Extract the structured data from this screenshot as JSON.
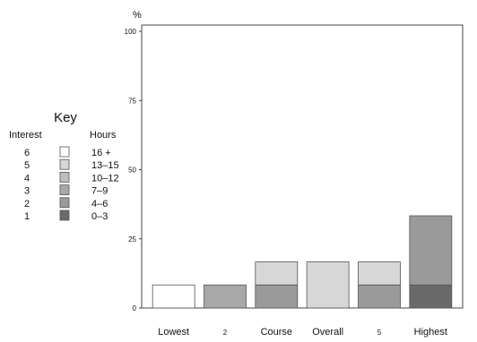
{
  "chart_data": {
    "type": "bar",
    "stacked": true,
    "ylabel": "%",
    "ylim": [
      0,
      105
    ],
    "yticks": [
      0,
      25,
      50,
      75,
      100
    ],
    "grid": false,
    "categories": [
      "Lowest",
      "2",
      "Course",
      "Overall",
      "5",
      "Highest"
    ],
    "category_sizes": [
      "normal",
      "small",
      "normal",
      "normal",
      "small",
      "normal"
    ],
    "series": [
      {
        "name": "0–3",
        "interest": "1",
        "color": "#6a6a6a",
        "values": [
          0,
          0,
          0,
          0,
          0,
          8.33
        ]
      },
      {
        "name": "4–6",
        "interest": "2",
        "color": "#9a9a9a",
        "values": [
          0,
          0,
          8.33,
          0,
          8.33,
          25
        ]
      },
      {
        "name": "7–9",
        "interest": "3",
        "color": "#a8a8a8",
        "values": [
          0,
          8.33,
          0,
          0,
          0,
          0
        ]
      },
      {
        "name": "10–12",
        "interest": "4",
        "color": "#bdbdbd",
        "values": [
          0,
          0,
          0,
          0,
          0,
          0
        ]
      },
      {
        "name": "13–15",
        "interest": "5",
        "color": "#d7d7d7",
        "values": [
          0,
          0,
          8.33,
          16.67,
          8.33,
          0
        ]
      },
      {
        "name": "16 +",
        "interest": "6",
        "color": "#ffffff",
        "values": [
          8.33,
          0,
          0,
          0,
          0,
          0
        ]
      }
    ],
    "legend": {
      "title": "Key",
      "interest_header": "Interest",
      "hours_header": "Hours",
      "placement": "left",
      "order": [
        5,
        4,
        3,
        2,
        1,
        0
      ]
    }
  }
}
